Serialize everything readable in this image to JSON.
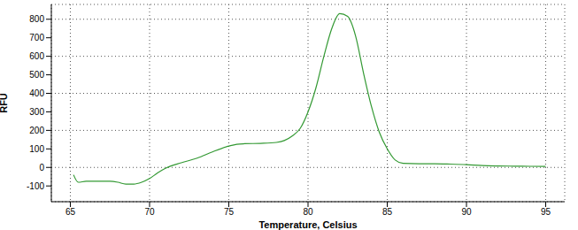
{
  "chart_data": {
    "type": "line",
    "x_label": "Temperature, Celsius",
    "y_label": "RFU",
    "color": "#339933",
    "grid": true,
    "xlim": [
      63.8,
      96.2
    ],
    "ylim": [
      -185,
      880
    ],
    "xticks": [
      65,
      70,
      75,
      80,
      85,
      90,
      95
    ],
    "yticks": [
      -100,
      0,
      100,
      200,
      300,
      400,
      500,
      600,
      700,
      800
    ],
    "x": [
      65.2,
      65.5,
      66,
      67,
      67.5,
      68,
      68.5,
      69,
      69.5,
      70,
      70.5,
      71,
      72,
      73,
      74,
      75,
      75.5,
      76,
      77,
      78,
      78.5,
      79,
      79.5,
      80,
      80.5,
      81,
      81.5,
      82,
      82.5,
      83,
      83.5,
      84,
      84.5,
      85,
      85.5,
      86,
      87,
      88,
      89,
      90,
      91,
      92,
      93,
      94,
      95
    ],
    "values": [
      -40,
      -80,
      -75,
      -75,
      -75,
      -80,
      -90,
      -90,
      -80,
      -60,
      -30,
      -5,
      25,
      50,
      85,
      115,
      125,
      128,
      130,
      135,
      145,
      170,
      210,
      300,
      430,
      600,
      750,
      830,
      815,
      710,
      510,
      330,
      190,
      100,
      40,
      22,
      20,
      20,
      18,
      15,
      10,
      8,
      7,
      6,
      5
    ]
  }
}
